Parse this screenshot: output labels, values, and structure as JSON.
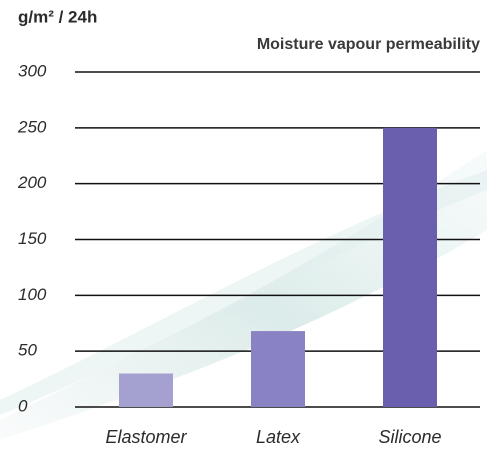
{
  "chart_data": {
    "type": "bar",
    "title": "Moisture vapour permeability",
    "y_label": "g/m² / 24h",
    "categories": [
      "Elastomer",
      "Latex",
      "Silicone"
    ],
    "values": [
      30,
      68,
      250
    ],
    "colors": [
      "#a4a0cf",
      "#8a83c3",
      "#6a5fae"
    ],
    "ylim": [
      0,
      300
    ],
    "yticks": [
      0,
      50,
      100,
      150,
      200,
      250,
      300
    ],
    "grid": true
  }
}
